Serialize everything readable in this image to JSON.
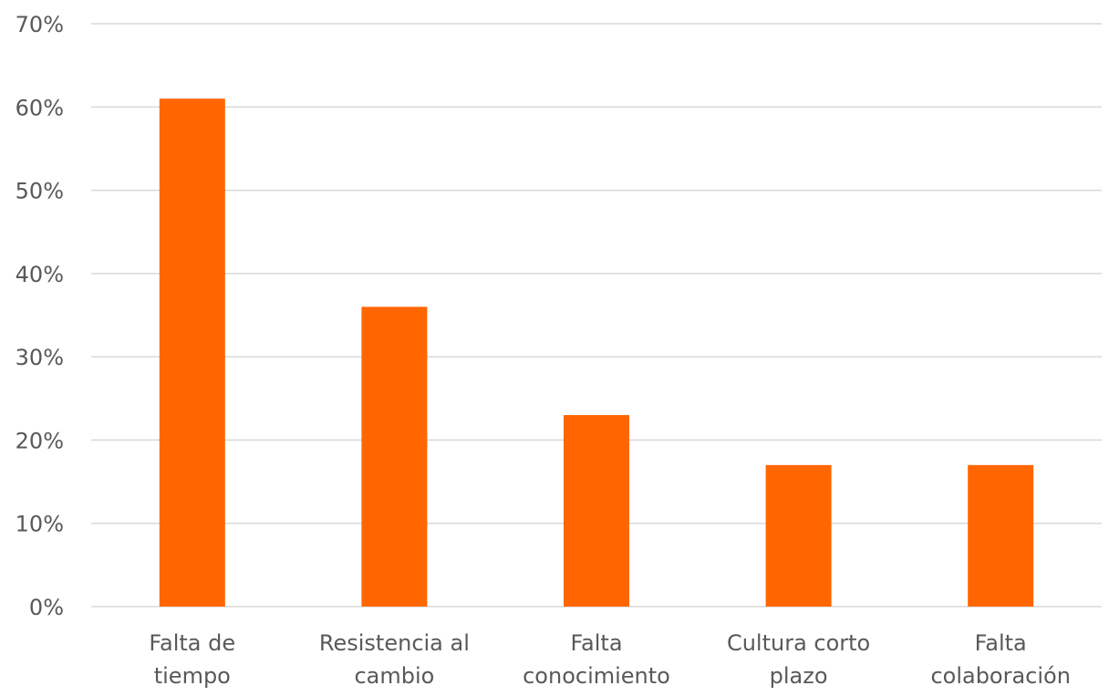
{
  "chart_data": {
    "type": "bar",
    "title": "",
    "xlabel": "",
    "ylabel": "",
    "categories": [
      [
        "Falta de",
        "tiempo"
      ],
      [
        "Resistencia al",
        "cambio"
      ],
      [
        "Falta",
        "conocimiento"
      ],
      [
        "Cultura corto",
        "plazo"
      ],
      [
        "Falta",
        "colaboración"
      ]
    ],
    "values": [
      61,
      36,
      23,
      17,
      17
    ],
    "ylim": [
      0,
      70
    ],
    "yticks": [
      0,
      10,
      20,
      30,
      40,
      50,
      60,
      70
    ],
    "ytick_labels": [
      "0%",
      "10%",
      "20%",
      "30%",
      "40%",
      "50%",
      "60%",
      "70%"
    ],
    "grid": true,
    "legend": "none",
    "colors": {
      "bar": "#FF6600",
      "grid": "#D9D9D9",
      "text": "#595959"
    }
  }
}
